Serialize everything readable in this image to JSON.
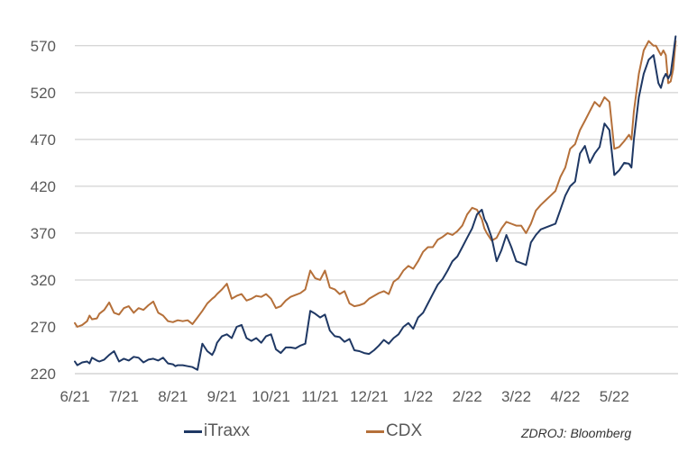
{
  "chart_data": {
    "type": "line",
    "title": "",
    "xlabel": "",
    "ylabel": "",
    "ylim": [
      220,
      590
    ],
    "yticks": [
      220,
      270,
      320,
      370,
      420,
      470,
      520,
      570
    ],
    "grid": "horizontal",
    "legend_placement": "bottom",
    "x_ticks": [
      "6/21",
      "7/21",
      "8/21",
      "9/21",
      "10/21",
      "11/21",
      "12/21",
      "1/22",
      "2/22",
      "3/22",
      "4/22",
      "5/22"
    ],
    "x_tick_positions": [
      0,
      1,
      2,
      3,
      4,
      5,
      6,
      7,
      8,
      9,
      10,
      11
    ],
    "xlim": [
      0,
      12.3
    ],
    "series": [
      {
        "name": "iTraxx",
        "color": "#1f3864",
        "x": [
          0,
          0.05,
          0.15,
          0.25,
          0.3,
          0.35,
          0.45,
          0.5,
          0.6,
          0.7,
          0.8,
          0.9,
          1.0,
          1.1,
          1.2,
          1.3,
          1.4,
          1.5,
          1.6,
          1.7,
          1.8,
          1.9,
          2.0,
          2.05,
          2.1,
          2.2,
          2.3,
          2.4,
          2.5,
          2.6,
          2.7,
          2.8,
          2.85,
          2.9,
          3.0,
          3.1,
          3.2,
          3.3,
          3.4,
          3.5,
          3.6,
          3.7,
          3.8,
          3.9,
          4.0,
          4.1,
          4.2,
          4.3,
          4.4,
          4.5,
          4.6,
          4.7,
          4.8,
          4.9,
          5.0,
          5.1,
          5.2,
          5.3,
          5.4,
          5.5,
          5.6,
          5.7,
          5.8,
          5.9,
          6.0,
          6.1,
          6.2,
          6.3,
          6.4,
          6.5,
          6.6,
          6.7,
          6.8,
          6.9,
          7.0,
          7.1,
          7.2,
          7.3,
          7.4,
          7.5,
          7.6,
          7.7,
          7.8,
          7.9,
          8.0,
          8.1,
          8.2,
          8.3,
          8.35,
          8.4,
          8.5,
          8.6,
          8.7,
          8.8,
          8.9,
          9.0,
          9.1,
          9.2,
          9.3,
          9.4,
          9.5,
          9.6,
          9.7,
          9.8,
          9.9,
          10.0,
          10.1,
          10.2,
          10.3,
          10.4,
          10.5,
          10.6,
          10.7,
          10.8,
          10.9,
          11.0,
          11.1,
          11.2,
          11.3,
          11.35,
          11.4,
          11.5,
          11.6,
          11.7,
          11.8,
          11.85,
          11.9,
          11.95,
          12.0,
          12.05,
          12.1,
          12.15,
          12.2,
          12.25
        ],
        "values": [
          233,
          229,
          232,
          233,
          231,
          237,
          234,
          233,
          235,
          240,
          244,
          233,
          236,
          234,
          238,
          237,
          232,
          235,
          236,
          234,
          237,
          231,
          230,
          228,
          229,
          229,
          228,
          227,
          224,
          252,
          244,
          240,
          245,
          253,
          260,
          262,
          258,
          270,
          272,
          258,
          255,
          258,
          253,
          260,
          262,
          246,
          242,
          248,
          248,
          247,
          250,
          252,
          287,
          284,
          280,
          283,
          266,
          260,
          259,
          254,
          257,
          245,
          244,
          242,
          241,
          245,
          250,
          256,
          252,
          258,
          262,
          270,
          274,
          268,
          280,
          285,
          295,
          305,
          315,
          321,
          330,
          340,
          345,
          355,
          365,
          375,
          390,
          395,
          385,
          380,
          365,
          340,
          352,
          368,
          355,
          340,
          338,
          336,
          360,
          368,
          374,
          376,
          378,
          380,
          395,
          410,
          420,
          425,
          455,
          463,
          445,
          455,
          462,
          487,
          480,
          432,
          437,
          445,
          444,
          440,
          470,
          515,
          540,
          555,
          560,
          545,
          530,
          525,
          535,
          540,
          535,
          540,
          560,
          580
        ]
      },
      {
        "name": "CDX",
        "color": "#b5703a",
        "x": [
          0,
          0.05,
          0.15,
          0.25,
          0.3,
          0.35,
          0.45,
          0.5,
          0.6,
          0.7,
          0.8,
          0.9,
          1.0,
          1.1,
          1.2,
          1.3,
          1.4,
          1.5,
          1.6,
          1.7,
          1.8,
          1.9,
          2.0,
          2.05,
          2.1,
          2.2,
          2.3,
          2.4,
          2.5,
          2.6,
          2.7,
          2.8,
          2.85,
          2.9,
          3.0,
          3.1,
          3.2,
          3.3,
          3.4,
          3.5,
          3.6,
          3.7,
          3.8,
          3.9,
          4.0,
          4.1,
          4.2,
          4.3,
          4.4,
          4.5,
          4.6,
          4.7,
          4.8,
          4.9,
          5.0,
          5.1,
          5.2,
          5.3,
          5.4,
          5.5,
          5.6,
          5.7,
          5.8,
          5.9,
          6.0,
          6.1,
          6.2,
          6.3,
          6.4,
          6.5,
          6.6,
          6.7,
          6.8,
          6.9,
          7.0,
          7.1,
          7.2,
          7.3,
          7.4,
          7.5,
          7.6,
          7.7,
          7.8,
          7.9,
          8.0,
          8.1,
          8.2,
          8.3,
          8.35,
          8.4,
          8.5,
          8.6,
          8.7,
          8.8,
          8.9,
          9.0,
          9.1,
          9.2,
          9.3,
          9.4,
          9.5,
          9.6,
          9.7,
          9.8,
          9.9,
          10.0,
          10.1,
          10.2,
          10.3,
          10.4,
          10.5,
          10.6,
          10.7,
          10.8,
          10.9,
          11.0,
          11.1,
          11.2,
          11.3,
          11.35,
          11.4,
          11.5,
          11.6,
          11.7,
          11.8,
          11.85,
          11.9,
          11.95,
          12.0,
          12.05,
          12.1,
          12.15,
          12.2,
          12.25
        ],
        "values": [
          274,
          270,
          272,
          276,
          282,
          278,
          279,
          284,
          288,
          296,
          285,
          283,
          290,
          292,
          285,
          290,
          288,
          293,
          297,
          285,
          282,
          276,
          275,
          276,
          277,
          276,
          277,
          273,
          280,
          287,
          295,
          300,
          302,
          305,
          310,
          316,
          300,
          303,
          305,
          298,
          300,
          303,
          302,
          305,
          300,
          290,
          292,
          298,
          302,
          304,
          306,
          310,
          330,
          322,
          320,
          330,
          312,
          310,
          305,
          308,
          295,
          292,
          293,
          295,
          300,
          303,
          306,
          308,
          305,
          318,
          322,
          330,
          335,
          332,
          340,
          350,
          355,
          355,
          363,
          366,
          370,
          368,
          372,
          378,
          390,
          397,
          395,
          385,
          375,
          370,
          362,
          365,
          375,
          382,
          380,
          378,
          378,
          370,
          380,
          394,
          400,
          405,
          410,
          415,
          430,
          440,
          460,
          465,
          480,
          490,
          500,
          510,
          505,
          515,
          510,
          460,
          462,
          468,
          475,
          470,
          500,
          540,
          565,
          575,
          570,
          570,
          565,
          560,
          565,
          560,
          530,
          532,
          545,
          575
        ]
      }
    ]
  },
  "legend": {
    "itraxx_label": "iTraxx",
    "cdx_label": "CDX",
    "itraxx_color": "#1f3864",
    "cdx_color": "#b5703a"
  },
  "source": "ZDROJ: Bloomberg"
}
